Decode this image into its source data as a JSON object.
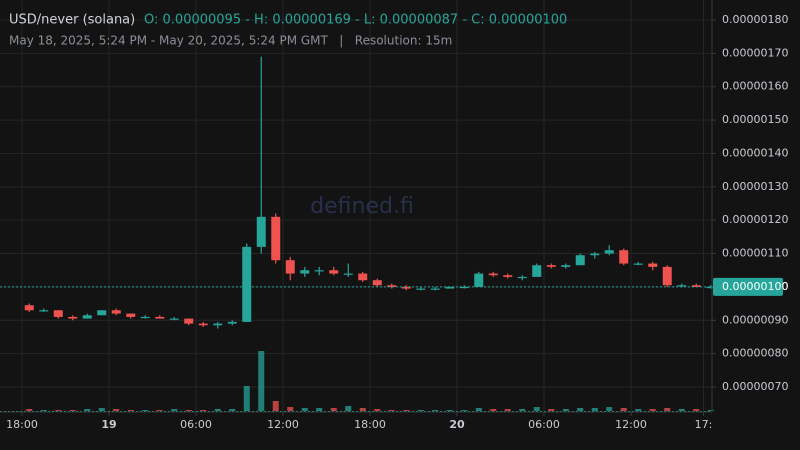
{
  "chart_data": {
    "type": "candlestick",
    "title": "USD/never (solana)",
    "ohlc_header": "O: 0.00000095 - H: 0.00000169 - L: 0.00000087 - C: 0.00000100",
    "subtitle": "May 18, 2025, 5:24 PM - May 20, 2025, 5:24 PM GMT   |   Resolution: 15m",
    "watermark": "defined.fi",
    "up_color": "#26a69a",
    "down_color": "#ef5350",
    "grid": true,
    "xlim": [
      "2025-05-18T17:24:00Z",
      "2025-05-20T17:24:00Z"
    ],
    "xticks": [
      {
        "value": "2025-05-18T18:00:00Z",
        "label": "18:00"
      },
      {
        "value": "2025-05-19T00:00:00Z",
        "label": "19"
      },
      {
        "value": "2025-05-19T06:00:00Z",
        "label": "06:00"
      },
      {
        "value": "2025-05-19T12:00:00Z",
        "label": "12:00"
      },
      {
        "value": "2025-05-19T18:00:00Z",
        "label": "18:00"
      },
      {
        "value": "2025-05-20T00:00:00Z",
        "label": "20"
      },
      {
        "value": "2025-05-20T06:00:00Z",
        "label": "06:00"
      },
      {
        "value": "2025-05-20T12:00:00Z",
        "label": "12:00"
      },
      {
        "value": "2025-05-20T17:00:00Z",
        "label": "17:"
      }
    ],
    "ylim": [
      6.25e-08,
      1.86e-07
    ],
    "yticks": [
      {
        "value": 7e-08,
        "label": "0.00000070"
      },
      {
        "value": 8e-08,
        "label": "0.00000080"
      },
      {
        "value": 9e-08,
        "label": "0.00000090"
      },
      {
        "value": 1e-07,
        "label": "0.00000100"
      },
      {
        "value": 1.1e-07,
        "label": "0.00000110"
      },
      {
        "value": 1.2e-07,
        "label": "0.00000120"
      },
      {
        "value": 1.3e-07,
        "label": "0.00000130"
      },
      {
        "value": 1.4e-07,
        "label": "0.00000140"
      },
      {
        "value": 1.5e-07,
        "label": "0.00000150"
      },
      {
        "value": 1.6e-07,
        "label": "0.00000160"
      },
      {
        "value": 1.7e-07,
        "label": "0.00000170"
      },
      {
        "value": 1.8e-07,
        "label": "0.00000180"
      }
    ],
    "last_price": {
      "value": 1e-07,
      "label": "0.00000100"
    },
    "x": [
      "2025-05-18T18:00:00Z",
      "2025-05-18T19:00:00Z",
      "2025-05-18T20:00:00Z",
      "2025-05-18T21:00:00Z",
      "2025-05-18T22:00:00Z",
      "2025-05-18T23:00:00Z",
      "2025-05-19T00:00:00Z",
      "2025-05-19T01:00:00Z",
      "2025-05-19T02:00:00Z",
      "2025-05-19T03:00:00Z",
      "2025-05-19T04:00:00Z",
      "2025-05-19T05:00:00Z",
      "2025-05-19T06:00:00Z",
      "2025-05-19T07:00:00Z",
      "2025-05-19T08:00:00Z",
      "2025-05-19T09:00:00Z",
      "2025-05-19T10:00:00Z",
      "2025-05-19T11:00:00Z",
      "2025-05-19T12:00:00Z",
      "2025-05-19T13:00:00Z",
      "2025-05-19T14:00:00Z",
      "2025-05-19T15:00:00Z",
      "2025-05-19T16:00:00Z",
      "2025-05-19T17:00:00Z",
      "2025-05-19T18:00:00Z",
      "2025-05-19T19:00:00Z",
      "2025-05-19T20:00:00Z",
      "2025-05-19T21:00:00Z",
      "2025-05-19T22:00:00Z",
      "2025-05-19T23:00:00Z",
      "2025-05-20T00:00:00Z",
      "2025-05-20T01:00:00Z",
      "2025-05-20T02:00:00Z",
      "2025-05-20T03:00:00Z",
      "2025-05-20T04:00:00Z",
      "2025-05-20T05:00:00Z",
      "2025-05-20T06:00:00Z",
      "2025-05-20T07:00:00Z",
      "2025-05-20T08:00:00Z",
      "2025-05-20T09:00:00Z",
      "2025-05-20T10:00:00Z",
      "2025-05-20T11:00:00Z",
      "2025-05-20T12:00:00Z",
      "2025-05-20T13:00:00Z",
      "2025-05-20T14:00:00Z",
      "2025-05-20T15:00:00Z",
      "2025-05-20T16:00:00Z",
      "2025-05-20T17:00:00Z"
    ],
    "open": [
      9.45e-08,
      9.3e-08,
      9.3e-08,
      9.1e-08,
      9.05e-08,
      9.15e-08,
      9.3e-08,
      9.2e-08,
      9.1e-08,
      9.1e-08,
      9.05e-08,
      9.05e-08,
      8.9e-08,
      8.85e-08,
      8.9e-08,
      8.95e-08,
      1.12e-07,
      1.21e-07,
      1.08e-07,
      1.04e-07,
      1.05e-07,
      1.05e-07,
      1.04e-07,
      1.04e-07,
      1.02e-07,
      1.005e-07,
      1e-07,
      9.95e-08,
      9.95e-08,
      9.95e-08,
      1e-07,
      1e-07,
      1.04e-07,
      1.035e-07,
      1.03e-07,
      1.03e-07,
      1.065e-07,
      1.06e-07,
      1.065e-07,
      1.095e-07,
      1.1e-07,
      1.11e-07,
      1.07e-07,
      1.07e-07,
      1.06e-07,
      1.005e-07,
      1.005e-07,
      1e-07
    ],
    "high": [
      9.5e-08,
      9.35e-08,
      9.3e-08,
      9.15e-08,
      9.2e-08,
      9.3e-08,
      9.35e-08,
      9.2e-08,
      9.15e-08,
      9.15e-08,
      9.1e-08,
      9.05e-08,
      8.95e-08,
      8.95e-08,
      9e-08,
      1.13e-07,
      1.69e-07,
      1.22e-07,
      1.09e-07,
      1.06e-07,
      1.06e-07,
      1.06e-07,
      1.07e-07,
      1.045e-07,
      1.025e-07,
      1.01e-07,
      1.005e-07,
      1e-07,
      1e-07,
      1e-07,
      1.005e-07,
      1.045e-07,
      1.045e-07,
      1.04e-07,
      1.035e-07,
      1.07e-07,
      1.07e-07,
      1.07e-07,
      1.1e-07,
      1.105e-07,
      1.125e-07,
      1.115e-07,
      1.075e-07,
      1.075e-07,
      1.065e-07,
      1.01e-07,
      1.01e-07,
      1.005e-07
    ],
    "low": [
      9.25e-08,
      9.25e-08,
      9.05e-08,
      9e-08,
      9.05e-08,
      9.15e-08,
      9.15e-08,
      9.05e-08,
      9.05e-08,
      9.05e-08,
      9e-08,
      8.85e-08,
      8.8e-08,
      8.75e-08,
      8.85e-08,
      8.95e-08,
      1.1e-07,
      1.07e-07,
      1.02e-07,
      1.03e-07,
      1.035e-07,
      1.035e-07,
      1.03e-07,
      1.015e-07,
      1e-07,
      9.95e-08,
      9.9e-08,
      9.9e-08,
      9.9e-08,
      9.95e-08,
      9.95e-08,
      1e-07,
      1.03e-07,
      1.025e-07,
      1.02e-07,
      1.03e-07,
      1.055e-07,
      1.055e-07,
      1.065e-07,
      1.085e-07,
      1.095e-07,
      1.065e-07,
      1.065e-07,
      1.05e-07,
      1e-07,
      1e-07,
      1e-07,
      9.95e-08
    ],
    "close": [
      9.3e-08,
      9.3e-08,
      9.1e-08,
      9.05e-08,
      9.15e-08,
      9.3e-08,
      9.2e-08,
      9.1e-08,
      9.1e-08,
      9.05e-08,
      9.05e-08,
      8.9e-08,
      8.85e-08,
      8.9e-08,
      8.95e-08,
      1.12e-07,
      1.21e-07,
      1.08e-07,
      1.04e-07,
      1.05e-07,
      1.05e-07,
      1.04e-07,
      1.04e-07,
      1.02e-07,
      1.005e-07,
      1e-07,
      9.95e-08,
      9.95e-08,
      9.95e-08,
      1e-07,
      1e-07,
      1.04e-07,
      1.035e-07,
      1.03e-07,
      1.03e-07,
      1.065e-07,
      1.06e-07,
      1.065e-07,
      1.095e-07,
      1.1e-07,
      1.11e-07,
      1.07e-07,
      1.07e-07,
      1.06e-07,
      1.005e-07,
      1.005e-07,
      1e-07,
      1e-07
    ],
    "volume": [
      2,
      1,
      1,
      1,
      2,
      3,
      2,
      1,
      1,
      1,
      2,
      1,
      1,
      2,
      2,
      25,
      60,
      10,
      4,
      3,
      3,
      3,
      5,
      3,
      2,
      1,
      1,
      1,
      1,
      1,
      1,
      3,
      2,
      2,
      2,
      4,
      2,
      2,
      3,
      3,
      4,
      3,
      2,
      2,
      3,
      2,
      2,
      1
    ]
  }
}
